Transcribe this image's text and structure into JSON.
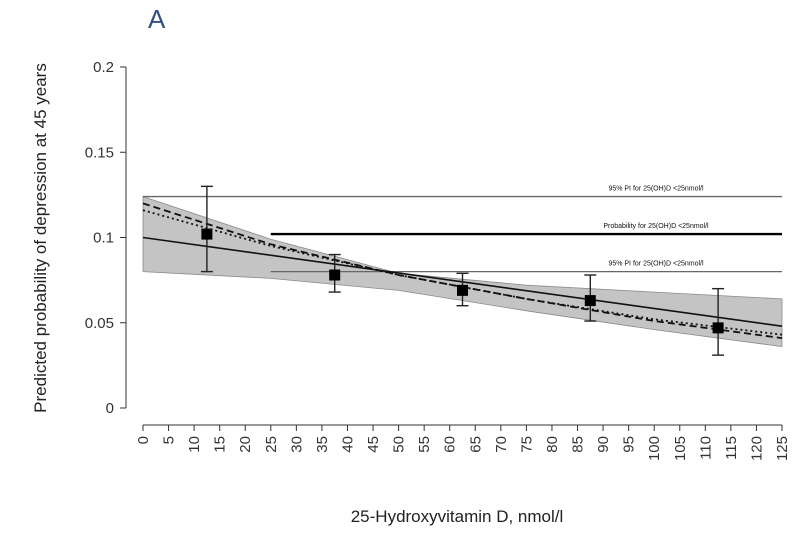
{
  "chart_data": {
    "type": "line",
    "panel_label": "A",
    "xlabel": "25-Hydroxyvitamin D, nmol/l",
    "ylabel": "Predicted probability of depression at 45 years",
    "xlim": [
      0,
      125
    ],
    "ylim": [
      0,
      0.2
    ],
    "x_ticks": [
      0,
      5,
      10,
      15,
      20,
      25,
      30,
      35,
      40,
      45,
      50,
      55,
      60,
      65,
      70,
      75,
      80,
      85,
      90,
      95,
      100,
      105,
      110,
      115,
      120,
      125
    ],
    "y_ticks": [
      0,
      0.05,
      0.1,
      0.15,
      0.2
    ],
    "y_tick_labels": [
      "0",
      "0.05",
      "0.1",
      "0.15",
      "0.2"
    ],
    "grid": false,
    "reference_lines": [
      {
        "name": "upper",
        "y": 0.124,
        "label": "95% PI for 25(OH)D <25nmol/l"
      },
      {
        "name": "mid",
        "y": 0.102,
        "label": "Probability for 25(OH)D <25nmol/l"
      },
      {
        "name": "lower",
        "y": 0.08,
        "label": "95% PI for 25(OH)D <25nmol/l"
      }
    ],
    "points": [
      {
        "x": 12.5,
        "y": 0.102,
        "lo": 0.08,
        "hi": 0.13
      },
      {
        "x": 37.5,
        "y": 0.078,
        "lo": 0.068,
        "hi": 0.09
      },
      {
        "x": 62.5,
        "y": 0.069,
        "lo": 0.06,
        "hi": 0.079
      },
      {
        "x": 87.5,
        "y": 0.063,
        "lo": 0.051,
        "hi": 0.078
      },
      {
        "x": 112.5,
        "y": 0.047,
        "lo": 0.031,
        "hi": 0.07
      }
    ],
    "confidence_band": {
      "x": [
        0,
        25,
        50,
        75,
        100,
        125
      ],
      "lo": [
        0.08,
        0.076,
        0.069,
        0.057,
        0.046,
        0.036
      ],
      "hi": [
        0.124,
        0.099,
        0.079,
        0.072,
        0.068,
        0.064
      ]
    },
    "series": [
      {
        "name": "linear",
        "style": "solid",
        "x": [
          0,
          125
        ],
        "y": [
          0.1,
          0.048
        ]
      },
      {
        "name": "dashed",
        "style": "dashed",
        "x": [
          0,
          25,
          50,
          75,
          100,
          125
        ],
        "y": [
          0.12,
          0.096,
          0.078,
          0.064,
          0.051,
          0.041
        ]
      },
      {
        "name": "dotted",
        "style": "dotted",
        "x": [
          0,
          25,
          50,
          75,
          100,
          125
        ],
        "y": [
          0.116,
          0.095,
          0.078,
          0.064,
          0.052,
          0.043
        ]
      }
    ]
  }
}
